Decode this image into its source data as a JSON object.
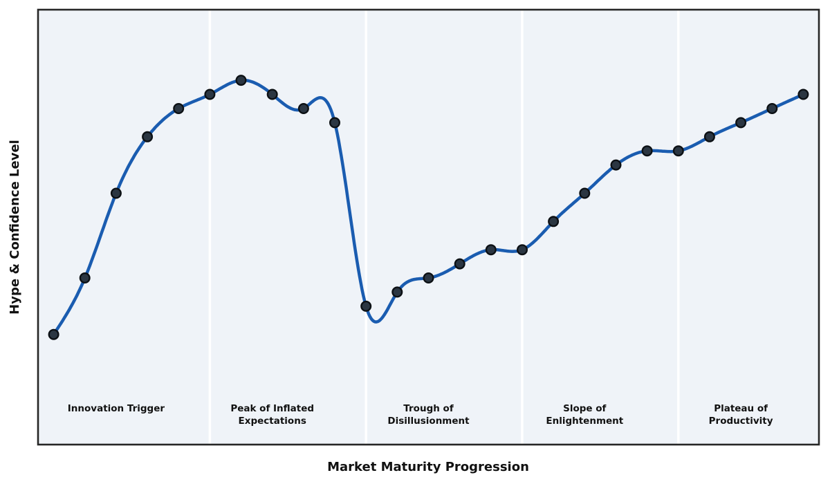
{
  "chart_data": {
    "type": "line",
    "title": "",
    "xlabel": "Market Maturity Progression",
    "ylabel": "Hype & Confidence Level",
    "x": [
      0,
      1,
      2,
      3,
      4,
      5,
      6,
      7,
      8,
      9,
      10,
      11,
      12,
      13,
      14,
      15,
      16,
      17,
      18,
      19,
      20,
      21,
      22,
      23,
      24
    ],
    "series": [
      {
        "name": "Hype & Confidence",
        "values": [
          10,
          30,
          60,
          80,
          90,
          95,
          100,
          95,
          90,
          85,
          20,
          25,
          30,
          35,
          40,
          40,
          50,
          60,
          70,
          75,
          75,
          80,
          85,
          90,
          95
        ]
      }
    ],
    "xlim": [
      -0.5,
      24.5
    ],
    "ylim": [
      -29,
      125
    ],
    "grid": false,
    "legend_position": "none",
    "curve_style": "cubic-spline-through-points",
    "marker": "circle",
    "phase_boundaries_x": [
      5,
      10,
      15,
      20
    ],
    "phases": [
      {
        "center_x": 2,
        "label_lines": [
          "Innovation Trigger"
        ]
      },
      {
        "center_x": 7,
        "label_lines": [
          "Peak of Inflated",
          "Expectations"
        ]
      },
      {
        "center_x": 12,
        "label_lines": [
          "Trough of",
          "Disillusionment"
        ]
      },
      {
        "center_x": 17,
        "label_lines": [
          "Slope of",
          "Enlightenment"
        ]
      },
      {
        "center_x": 22,
        "label_lines": [
          "Plateau of",
          "Productivity"
        ]
      }
    ],
    "colors": {
      "line": "#1a5cb0",
      "marker_fill": "#2b3642",
      "marker_edge": "#0c1014",
      "plot_bg": "#eff3f8",
      "divider": "#ffffff",
      "border": "#262626",
      "text": "#111111",
      "figure_bg": "#ffffff"
    }
  }
}
